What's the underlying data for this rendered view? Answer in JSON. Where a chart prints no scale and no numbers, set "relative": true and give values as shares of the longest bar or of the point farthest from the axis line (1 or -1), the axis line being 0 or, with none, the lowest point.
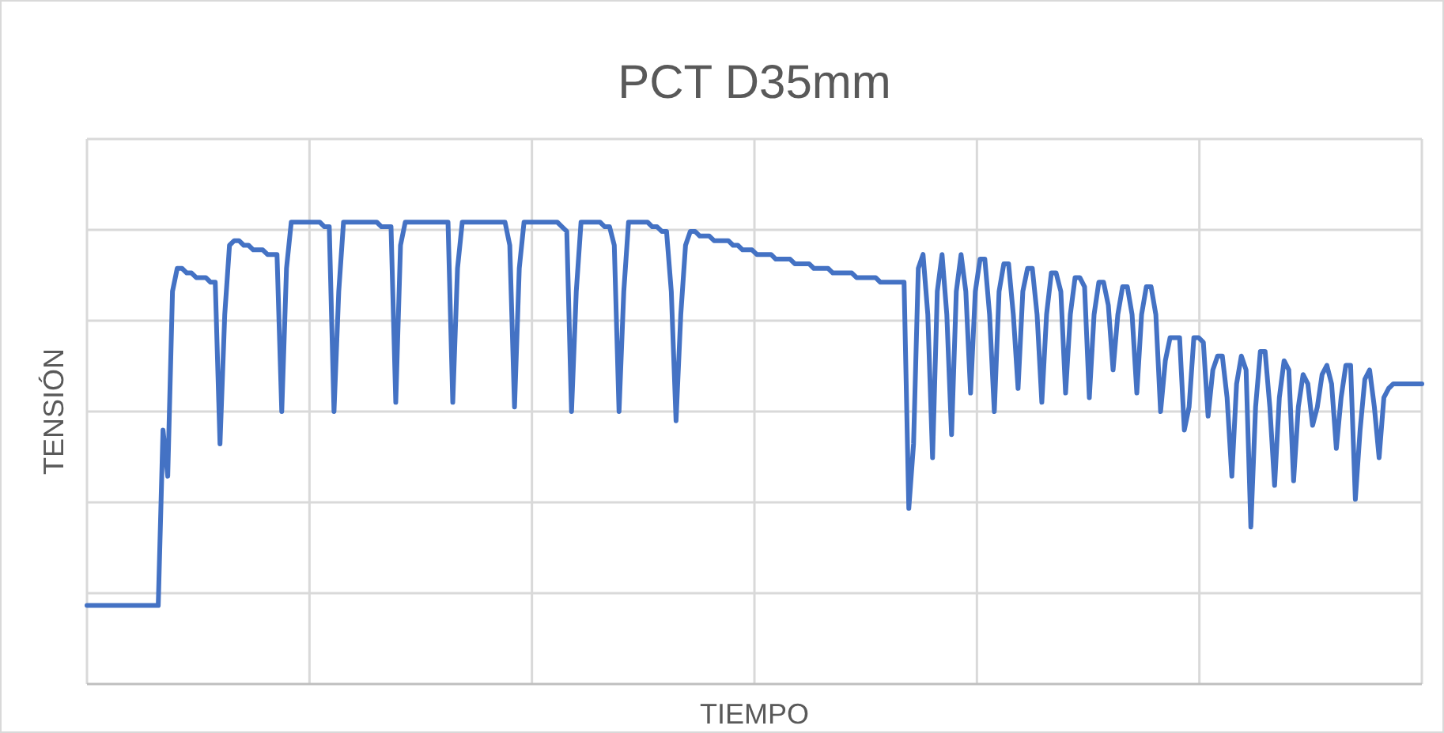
{
  "chart_data": {
    "type": "line",
    "title": "PCT D35mm",
    "xlabel": "TIEMPO",
    "ylabel": "TENSIÓN",
    "relative": true,
    "grid": true,
    "categories": [
      null,
      null,
      null,
      null,
      null,
      null,
      null,
      null,
      null,
      null,
      null,
      null,
      null,
      null,
      null,
      null,
      null,
      null,
      null,
      null,
      null,
      null,
      null,
      null,
      null,
      null,
      null,
      null,
      null,
      null,
      null,
      null,
      null,
      null,
      null,
      null,
      null,
      null,
      null,
      null,
      null,
      null,
      null,
      null,
      null,
      null,
      null,
      null,
      null,
      null,
      null,
      null,
      null,
      null,
      null,
      null,
      null,
      null,
      null,
      null,
      null,
      null,
      null,
      null,
      null,
      null,
      null,
      null,
      null,
      null,
      null,
      null,
      null,
      null,
      null,
      null,
      null,
      null,
      null,
      null,
      null,
      null,
      null,
      null,
      null,
      null,
      null,
      null,
      null,
      null,
      null,
      null,
      null,
      null,
      null,
      null,
      null,
      null,
      null,
      null,
      null,
      null,
      null,
      null,
      null,
      null,
      null,
      null,
      null,
      null,
      null,
      null,
      null,
      null,
      null,
      null,
      null,
      null,
      null,
      null,
      null,
      null,
      null,
      null,
      null,
      null,
      null,
      null,
      null,
      null,
      null,
      null,
      null,
      null,
      null,
      null,
      null,
      null,
      null,
      null,
      null,
      null,
      null,
      null,
      null,
      null,
      null,
      null,
      null,
      null,
      null,
      null,
      null,
      null,
      null,
      null,
      null,
      null,
      null,
      null,
      null,
      null,
      null,
      null,
      null,
      null,
      null,
      null,
      null,
      null,
      null,
      null,
      null,
      null,
      null,
      null,
      null,
      null,
      null,
      null,
      null,
      null,
      null,
      null,
      null,
      null,
      null,
      null,
      null,
      null,
      null,
      null,
      null,
      null,
      null,
      null,
      null,
      null,
      null,
      null,
      null,
      null,
      null,
      null,
      null,
      null,
      null,
      null,
      null,
      null,
      null,
      null,
      null,
      null,
      null,
      null,
      null,
      null,
      null,
      null,
      null,
      null,
      null,
      null,
      null,
      null,
      null,
      null,
      null,
      null,
      null,
      null,
      null,
      null,
      null,
      null,
      null,
      null,
      null,
      null,
      null,
      null,
      null,
      null,
      null,
      null,
      null,
      null,
      null,
      null,
      null,
      null,
      null,
      null,
      null,
      null,
      null,
      null,
      null,
      null,
      null,
      null,
      null,
      null,
      null,
      null,
      null,
      null,
      null,
      null,
      null,
      null,
      null,
      null,
      null,
      null,
      null,
      null,
      null,
      null,
      null,
      null
    ],
    "series": [
      {
        "color": "#4472c4",
        "values": [
          0.17,
          0.17,
          0.17,
          0.17,
          0.17,
          0.17,
          0.17,
          0.17,
          0.17,
          0.17,
          0.17,
          0.17,
          0.17,
          0.17,
          0.17,
          0.17,
          0.55,
          0.45,
          0.85,
          0.9,
          0.9,
          0.89,
          0.89,
          0.88,
          0.88,
          0.88,
          0.87,
          0.87,
          0.52,
          0.8,
          0.95,
          0.96,
          0.96,
          0.95,
          0.95,
          0.94,
          0.94,
          0.94,
          0.93,
          0.93,
          0.93,
          0.59,
          0.9,
          1,
          1,
          1,
          1,
          1,
          1,
          1,
          0.99,
          0.99,
          0.59,
          0.85,
          1,
          1,
          1,
          1,
          1,
          1,
          1,
          1,
          0.99,
          0.99,
          0.99,
          0.61,
          0.95,
          1,
          1,
          1,
          1,
          1,
          1,
          1,
          1,
          1,
          1,
          0.61,
          0.9,
          1,
          1,
          1,
          1,
          1,
          1,
          1,
          1,
          1,
          1,
          0.95,
          0.6,
          0.9,
          1,
          1,
          1,
          1,
          1,
          1,
          1,
          1,
          0.99,
          0.98,
          0.59,
          0.85,
          1,
          1,
          1,
          1,
          1,
          0.99,
          0.99,
          0.95,
          0.59,
          0.85,
          1,
          1,
          1,
          1,
          1,
          0.99,
          0.99,
          0.98,
          0.98,
          0.85,
          0.57,
          0.8,
          0.95,
          0.98,
          0.98,
          0.97,
          0.97,
          0.97,
          0.96,
          0.96,
          0.96,
          0.96,
          0.95,
          0.95,
          0.94,
          0.94,
          0.94,
          0.93,
          0.93,
          0.93,
          0.93,
          0.92,
          0.92,
          0.92,
          0.92,
          0.91,
          0.91,
          0.91,
          0.91,
          0.9,
          0.9,
          0.9,
          0.9,
          0.89,
          0.89,
          0.89,
          0.89,
          0.89,
          0.88,
          0.88,
          0.88,
          0.88,
          0.88,
          0.87,
          0.87,
          0.87,
          0.87,
          0.87,
          0.87,
          0.38,
          0.52,
          0.9,
          0.93,
          0.8,
          0.49,
          0.85,
          0.93,
          0.8,
          0.54,
          0.85,
          0.93,
          0.85,
          0.63,
          0.85,
          0.92,
          0.92,
          0.8,
          0.59,
          0.85,
          0.91,
          0.91,
          0.8,
          0.64,
          0.85,
          0.9,
          0.9,
          0.8,
          0.61,
          0.8,
          0.89,
          0.89,
          0.85,
          0.63,
          0.8,
          0.88,
          0.88,
          0.86,
          0.62,
          0.8,
          0.87,
          0.87,
          0.82,
          0.68,
          0.8,
          0.86,
          0.86,
          0.8,
          0.63,
          0.8,
          0.86,
          0.86,
          0.8,
          0.59,
          0.7,
          0.75,
          0.75,
          0.75,
          0.55,
          0.6,
          0.75,
          0.75,
          0.74,
          0.58,
          0.68,
          0.71,
          0.71,
          0.62,
          0.45,
          0.65,
          0.71,
          0.68,
          0.34,
          0.6,
          0.72,
          0.72,
          0.6,
          0.43,
          0.62,
          0.7,
          0.68,
          0.44,
          0.6,
          0.67,
          0.65,
          0.56,
          0.6,
          0.67,
          0.69,
          0.65,
          0.51,
          0.62,
          0.69,
          0.69,
          0.4,
          0.55,
          0.66,
          0.68,
          0.6,
          0.49,
          0.62,
          0.64,
          0.65,
          0.65,
          0.65,
          0.65,
          0.65,
          0.65,
          0.65
        ]
      }
    ]
  }
}
